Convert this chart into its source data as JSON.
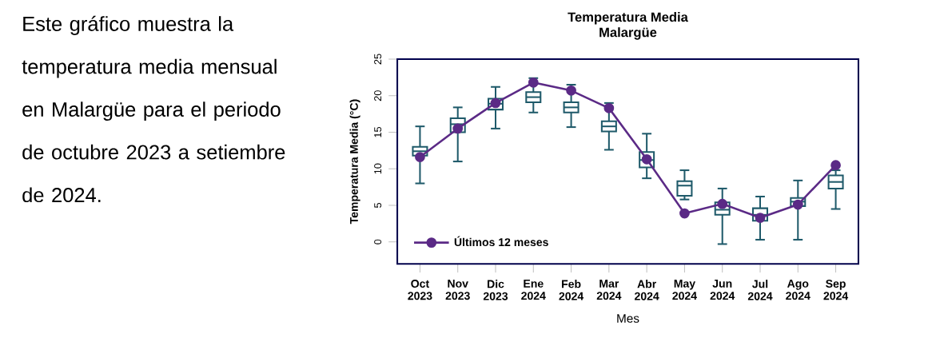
{
  "chart_data": {
    "type": "box",
    "title": "Temperatura Media",
    "subtitle": "Malargüe",
    "xlabel": "Mes",
    "ylabel": "Temperatura Media (°C)",
    "annotations": [
      "Este gráfico muestra la temperatura media mensual en Malargüe para el periodo de octubre 2023 a setiembre de 2024."
    ],
    "categories": [
      "Oct 2023",
      "Nov 2023",
      "Dic 2023",
      "Ene 2024",
      "Feb 2024",
      "Mar 2024",
      "Abr 2024",
      "May 2024",
      "Jun 2024",
      "Jul 2024",
      "Ago 2024",
      "Sep 2024"
    ],
    "ylim": [
      -3,
      25
    ],
    "yticks": [
      0,
      5,
      10,
      15,
      20,
      25
    ],
    "legend": "bottom left",
    "marker": "circle",
    "series": [
      {
        "color": "#1f5a6a",
        "boxes": [
          {
            "low": 8.0,
            "q1": 11.8,
            "median": 12.4,
            "q3": 13.0,
            "high": 15.8
          },
          {
            "low": 11.0,
            "q1": 15.0,
            "median": 16.1,
            "q3": 16.9,
            "high": 18.4
          },
          {
            "low": 15.5,
            "q1": 18.1,
            "median": 18.9,
            "q3": 19.6,
            "high": 21.2
          },
          {
            "low": 17.7,
            "q1": 19.1,
            "median": 19.8,
            "q3": 20.5,
            "high": 22.4
          },
          {
            "low": 15.7,
            "q1": 17.7,
            "median": 18.4,
            "q3": 19.1,
            "high": 21.5
          },
          {
            "low": 12.6,
            "q1": 15.1,
            "median": 15.8,
            "q3": 16.5,
            "high": 19.0
          },
          {
            "low": 8.7,
            "q1": 10.2,
            "median": 11.2,
            "q3": 12.3,
            "high": 14.8
          },
          {
            "low": 5.8,
            "q1": 6.3,
            "median": 7.7,
            "q3": 8.3,
            "high": 9.8
          },
          {
            "low": -0.3,
            "q1": 3.7,
            "median": 4.4,
            "q3": 5.4,
            "high": 7.3
          },
          {
            "low": 0.3,
            "q1": 2.9,
            "median": 3.7,
            "q3": 4.6,
            "high": 6.2
          },
          {
            "low": 0.3,
            "q1": 4.9,
            "median": 5.5,
            "q3": 6.0,
            "high": 8.4
          },
          {
            "low": 4.5,
            "q1": 7.3,
            "median": 8.2,
            "q3": 9.1,
            "high": 9.8
          }
        ]
      },
      {
        "type": "line",
        "name": "Últimos 12 meses",
        "color": "#5b2a86",
        "values": [
          11.6,
          15.5,
          19.0,
          21.8,
          20.7,
          18.3,
          11.3,
          3.9,
          5.2,
          3.3,
          5.1,
          10.5
        ]
      }
    ]
  }
}
